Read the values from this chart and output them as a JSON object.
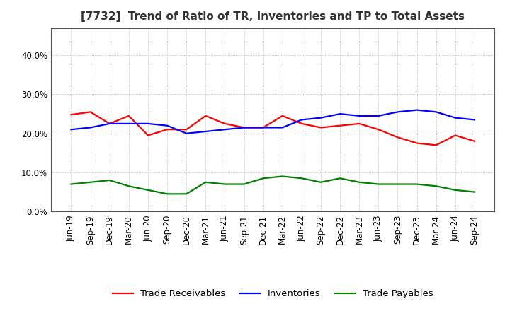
{
  "title": "[7732]  Trend of Ratio of TR, Inventories and TP to Total Assets",
  "x_labels": [
    "Jun-19",
    "Sep-19",
    "Dec-19",
    "Mar-20",
    "Jun-20",
    "Sep-20",
    "Dec-20",
    "Mar-21",
    "Jun-21",
    "Sep-21",
    "Dec-21",
    "Mar-22",
    "Jun-22",
    "Sep-22",
    "Dec-22",
    "Mar-23",
    "Jun-23",
    "Sep-23",
    "Dec-23",
    "Mar-24",
    "Jun-24",
    "Sep-24"
  ],
  "trade_receivables": [
    24.8,
    25.5,
    22.5,
    24.5,
    19.5,
    21.0,
    21.0,
    24.5,
    22.5,
    21.5,
    21.5,
    24.5,
    22.5,
    21.5,
    22.0,
    22.5,
    21.0,
    19.0,
    17.5,
    17.0,
    19.5,
    18.0
  ],
  "inventories": [
    21.0,
    21.5,
    22.5,
    22.5,
    22.5,
    22.0,
    20.0,
    20.5,
    21.0,
    21.5,
    21.5,
    21.5,
    23.5,
    24.0,
    25.0,
    24.5,
    24.5,
    25.5,
    26.0,
    25.5,
    24.0,
    23.5
  ],
  "trade_payables": [
    7.0,
    7.5,
    8.0,
    6.5,
    5.5,
    4.5,
    4.5,
    7.5,
    7.0,
    7.0,
    8.5,
    9.0,
    8.5,
    7.5,
    8.5,
    7.5,
    7.0,
    7.0,
    7.0,
    6.5,
    5.5,
    5.0
  ],
  "tr_color": "#ff0000",
  "inv_color": "#0000ff",
  "tp_color": "#008000",
  "ylim": [
    0,
    47
  ],
  "yticks": [
    0,
    10,
    20,
    30,
    40
  ],
  "ytick_labels": [
    "0.0%",
    "10.0%",
    "20.0%",
    "30.0%",
    "40.0%"
  ],
  "legend_labels": [
    "Trade Receivables",
    "Inventories",
    "Trade Payables"
  ],
  "bg_color": "#ffffff",
  "plot_bg_color": "#ffffff",
  "grid_color": "#aaaaaa",
  "title_fontsize": 11,
  "tick_fontsize": 8.5,
  "legend_fontsize": 9.5,
  "line_width": 1.6
}
